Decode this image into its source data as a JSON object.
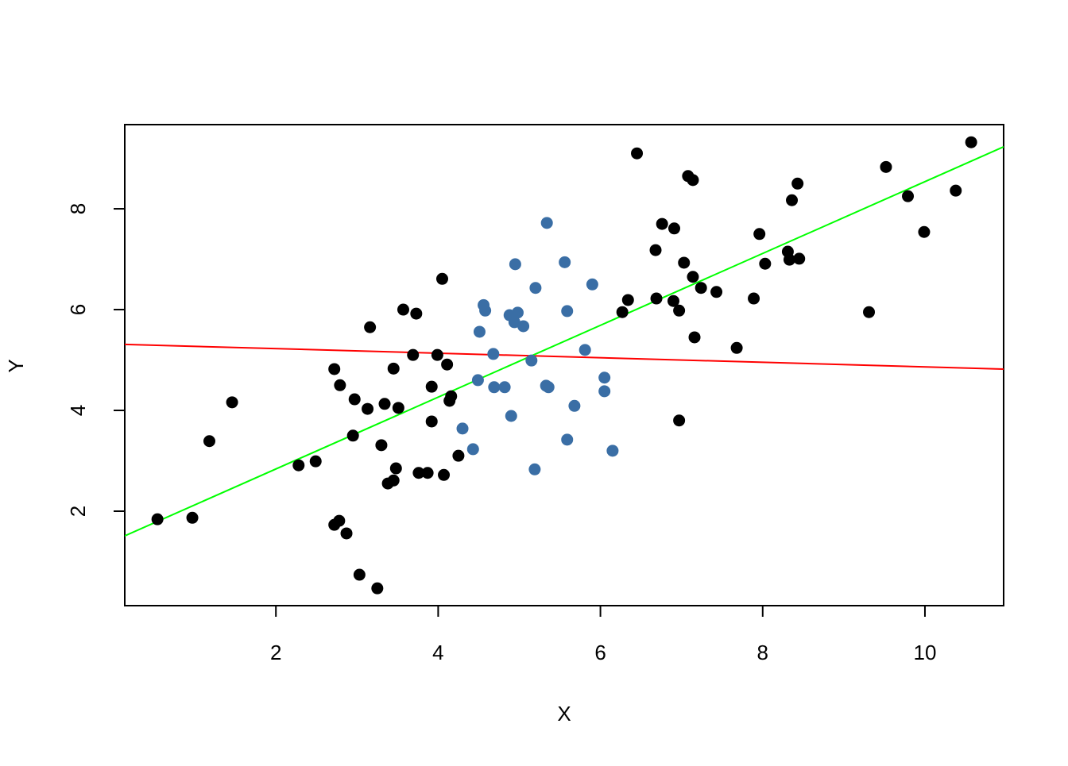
{
  "chart_data": {
    "type": "scatter",
    "xlabel": "X",
    "ylabel": "Y",
    "xlim": [
      0.137,
      10.97
    ],
    "ylim": [
      0.126,
      9.67
    ],
    "xticks": [
      2,
      4,
      6,
      8,
      10
    ],
    "yticks": [
      2,
      4,
      6,
      8
    ],
    "series": [
      {
        "color": "#000000",
        "x": [
          0.54,
          0.97,
          1.18,
          1.46,
          2.28,
          2.49,
          2.72,
          2.79,
          2.72,
          2.78,
          2.87,
          2.97,
          2.95,
          3.03,
          3.13,
          3.16,
          3.25,
          3.3,
          3.34,
          3.38,
          3.45,
          3.45,
          3.48,
          3.51,
          3.57,
          3.69,
          3.73,
          3.76,
          3.87,
          3.92,
          3.92,
          3.99,
          4.05,
          4.07,
          4.11,
          4.14,
          4.16,
          4.25,
          6.27,
          6.34,
          6.45,
          6.68,
          6.69,
          6.76,
          6.91,
          6.9,
          6.97,
          6.97,
          7.03,
          7.08,
          7.14,
          7.14,
          7.16,
          7.24,
          7.43,
          7.68,
          7.89,
          7.96,
          8.03,
          8.31,
          8.33,
          8.36,
          8.43,
          8.45,
          9.31,
          9.52,
          9.79,
          9.99,
          10.38,
          10.57
        ],
        "values": [
          1.84,
          1.87,
          3.39,
          4.16,
          2.91,
          2.99,
          4.82,
          4.5,
          1.73,
          1.81,
          1.56,
          4.22,
          3.5,
          0.74,
          4.03,
          5.65,
          0.47,
          3.31,
          4.13,
          2.55,
          2.61,
          4.83,
          2.85,
          4.05,
          6.0,
          5.1,
          5.92,
          2.76,
          2.76,
          4.47,
          3.78,
          5.1,
          6.61,
          2.72,
          4.91,
          4.19,
          4.28,
          3.1,
          5.95,
          6.19,
          9.1,
          7.18,
          6.22,
          7.7,
          7.61,
          6.17,
          5.98,
          3.8,
          6.93,
          8.65,
          8.57,
          6.65,
          5.45,
          6.43,
          6.35,
          5.24,
          6.22,
          7.5,
          6.91,
          7.15,
          6.99,
          8.17,
          8.5,
          7.01,
          5.95,
          8.83,
          8.25,
          7.54,
          8.36,
          9.32
        ]
      },
      {
        "color": "#3a6ea5",
        "x": [
          4.3,
          4.43,
          4.49,
          4.51,
          4.56,
          4.58,
          4.68,
          4.69,
          4.82,
          4.88,
          4.9,
          4.94,
          4.95,
          4.98,
          5.05,
          5.15,
          5.19,
          5.2,
          5.33,
          5.34,
          5.36,
          5.56,
          5.59,
          5.59,
          5.68,
          5.81,
          5.9,
          6.05,
          6.05,
          6.15
        ],
        "values": [
          3.64,
          3.23,
          4.6,
          5.56,
          6.09,
          5.98,
          5.12,
          4.46,
          4.46,
          5.89,
          3.89,
          5.75,
          6.9,
          5.94,
          5.67,
          4.99,
          2.83,
          6.43,
          4.49,
          7.72,
          4.46,
          6.94,
          5.97,
          3.42,
          4.09,
          5.2,
          6.5,
          4.65,
          4.38,
          3.2
        ]
      }
    ],
    "lines": [
      {
        "color": "#ff0000",
        "x": [
          0.137,
          10.97
        ],
        "values": [
          5.31,
          4.82
        ]
      },
      {
        "color": "#00ff00",
        "x": [
          0.137,
          10.97
        ],
        "values": [
          1.51,
          9.23
        ]
      }
    ]
  }
}
